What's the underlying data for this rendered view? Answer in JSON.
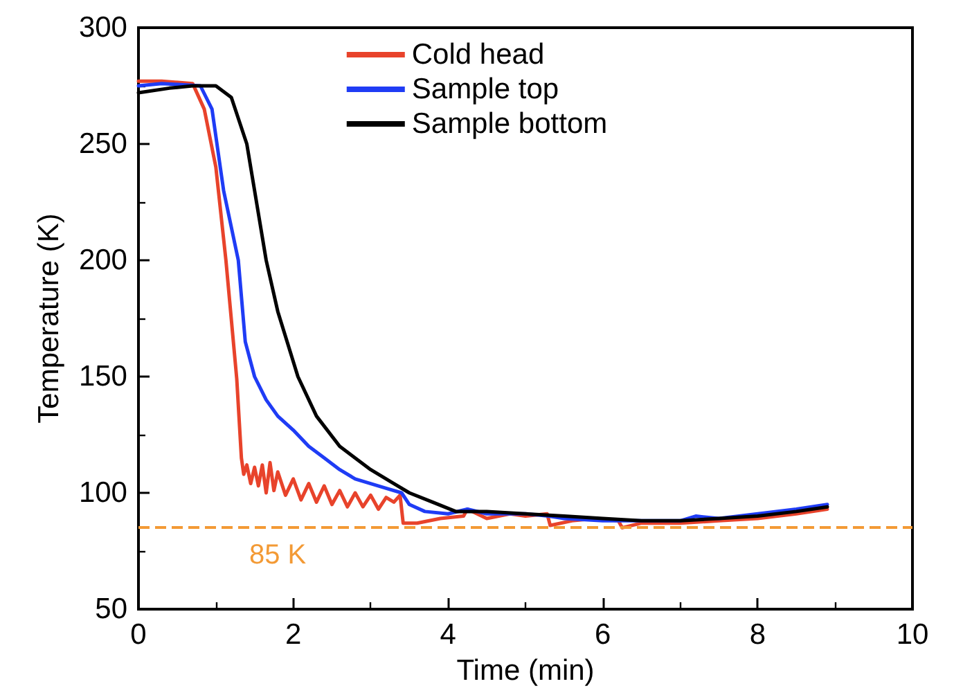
{
  "chart_data": {
    "type": "line",
    "xlabel": "Time (min)",
    "ylabel": "Temperature (K)",
    "xlim": [
      0,
      10
    ],
    "xticks": [
      0,
      2,
      4,
      6,
      8,
      10
    ],
    "ylim": [
      50,
      300
    ],
    "yticks": [
      50,
      100,
      150,
      200,
      250,
      300
    ],
    "grid": false,
    "legend": "top",
    "marker": "none",
    "line_style": "solid",
    "ref_lines": [
      {
        "axis": "y",
        "value": 85,
        "label": "85 K",
        "color": "#f39a35",
        "line_style": "dashed"
      }
    ],
    "series": [
      {
        "name": "Cold head",
        "color": "#e8432b",
        "x": [
          0,
          0.3,
          0.7,
          0.85,
          1.0,
          1.13,
          1.27,
          1.33,
          1.36,
          1.4,
          1.45,
          1.5,
          1.55,
          1.6,
          1.65,
          1.7,
          1.75,
          1.8,
          1.9,
          2.0,
          2.1,
          2.2,
          2.3,
          2.4,
          2.5,
          2.6,
          2.7,
          2.8,
          2.9,
          3.0,
          3.1,
          3.2,
          3.3,
          3.38,
          3.42,
          3.6,
          3.9,
          4.2,
          4.25,
          4.5,
          4.8,
          5.0,
          5.28,
          5.32,
          5.6,
          5.9,
          6.2,
          6.25,
          6.5,
          7.0,
          7.5,
          8.0,
          8.5,
          8.9
        ],
        "values": [
          277,
          277,
          276,
          265,
          240,
          200,
          149,
          115,
          108,
          112,
          104,
          111,
          103,
          112,
          100,
          113,
          101,
          109,
          99,
          106,
          97,
          104,
          96,
          103,
          95,
          101,
          94,
          100,
          94,
          99,
          93,
          98,
          96,
          99,
          87,
          87,
          89,
          90,
          93,
          89,
          91,
          90,
          91,
          86,
          88,
          89,
          88,
          85,
          87,
          87,
          88,
          89,
          91,
          93
        ]
      },
      {
        "name": "Sample top",
        "color": "#1f3cf5",
        "x": [
          0,
          0.3,
          0.8,
          0.95,
          1.1,
          1.29,
          1.38,
          1.5,
          1.65,
          1.8,
          2.0,
          2.2,
          2.4,
          2.6,
          2.8,
          3.0,
          3.2,
          3.4,
          3.5,
          3.7,
          4.0,
          4.25,
          4.5,
          5.0,
          5.3,
          5.5,
          6.0,
          6.5,
          7.0,
          7.2,
          7.5,
          8.0,
          8.5,
          8.9
        ],
        "values": [
          275,
          276,
          275,
          265,
          230,
          200,
          165,
          150,
          140,
          133,
          127,
          120,
          115,
          110,
          106,
          104,
          102,
          100,
          95,
          92,
          91,
          93,
          91,
          91,
          90,
          89,
          88,
          88,
          88,
          90,
          89,
          91,
          93,
          95
        ]
      },
      {
        "name": "Sample bottom",
        "color": "#000000",
        "x": [
          0,
          0.4,
          0.7,
          1.0,
          1.2,
          1.4,
          1.5,
          1.65,
          1.8,
          2.06,
          2.3,
          2.6,
          3.0,
          3.3,
          3.5,
          3.8,
          4.1,
          4.5,
          5.0,
          5.5,
          6.0,
          6.5,
          7.0,
          7.5,
          8.0,
          8.5,
          8.9
        ],
        "values": [
          272,
          274,
          275,
          275,
          270,
          250,
          230,
          200,
          178,
          150,
          133,
          120,
          110,
          104,
          100,
          96,
          92,
          92,
          91,
          90,
          89,
          88,
          88,
          89,
          90,
          92,
          94
        ]
      }
    ]
  }
}
